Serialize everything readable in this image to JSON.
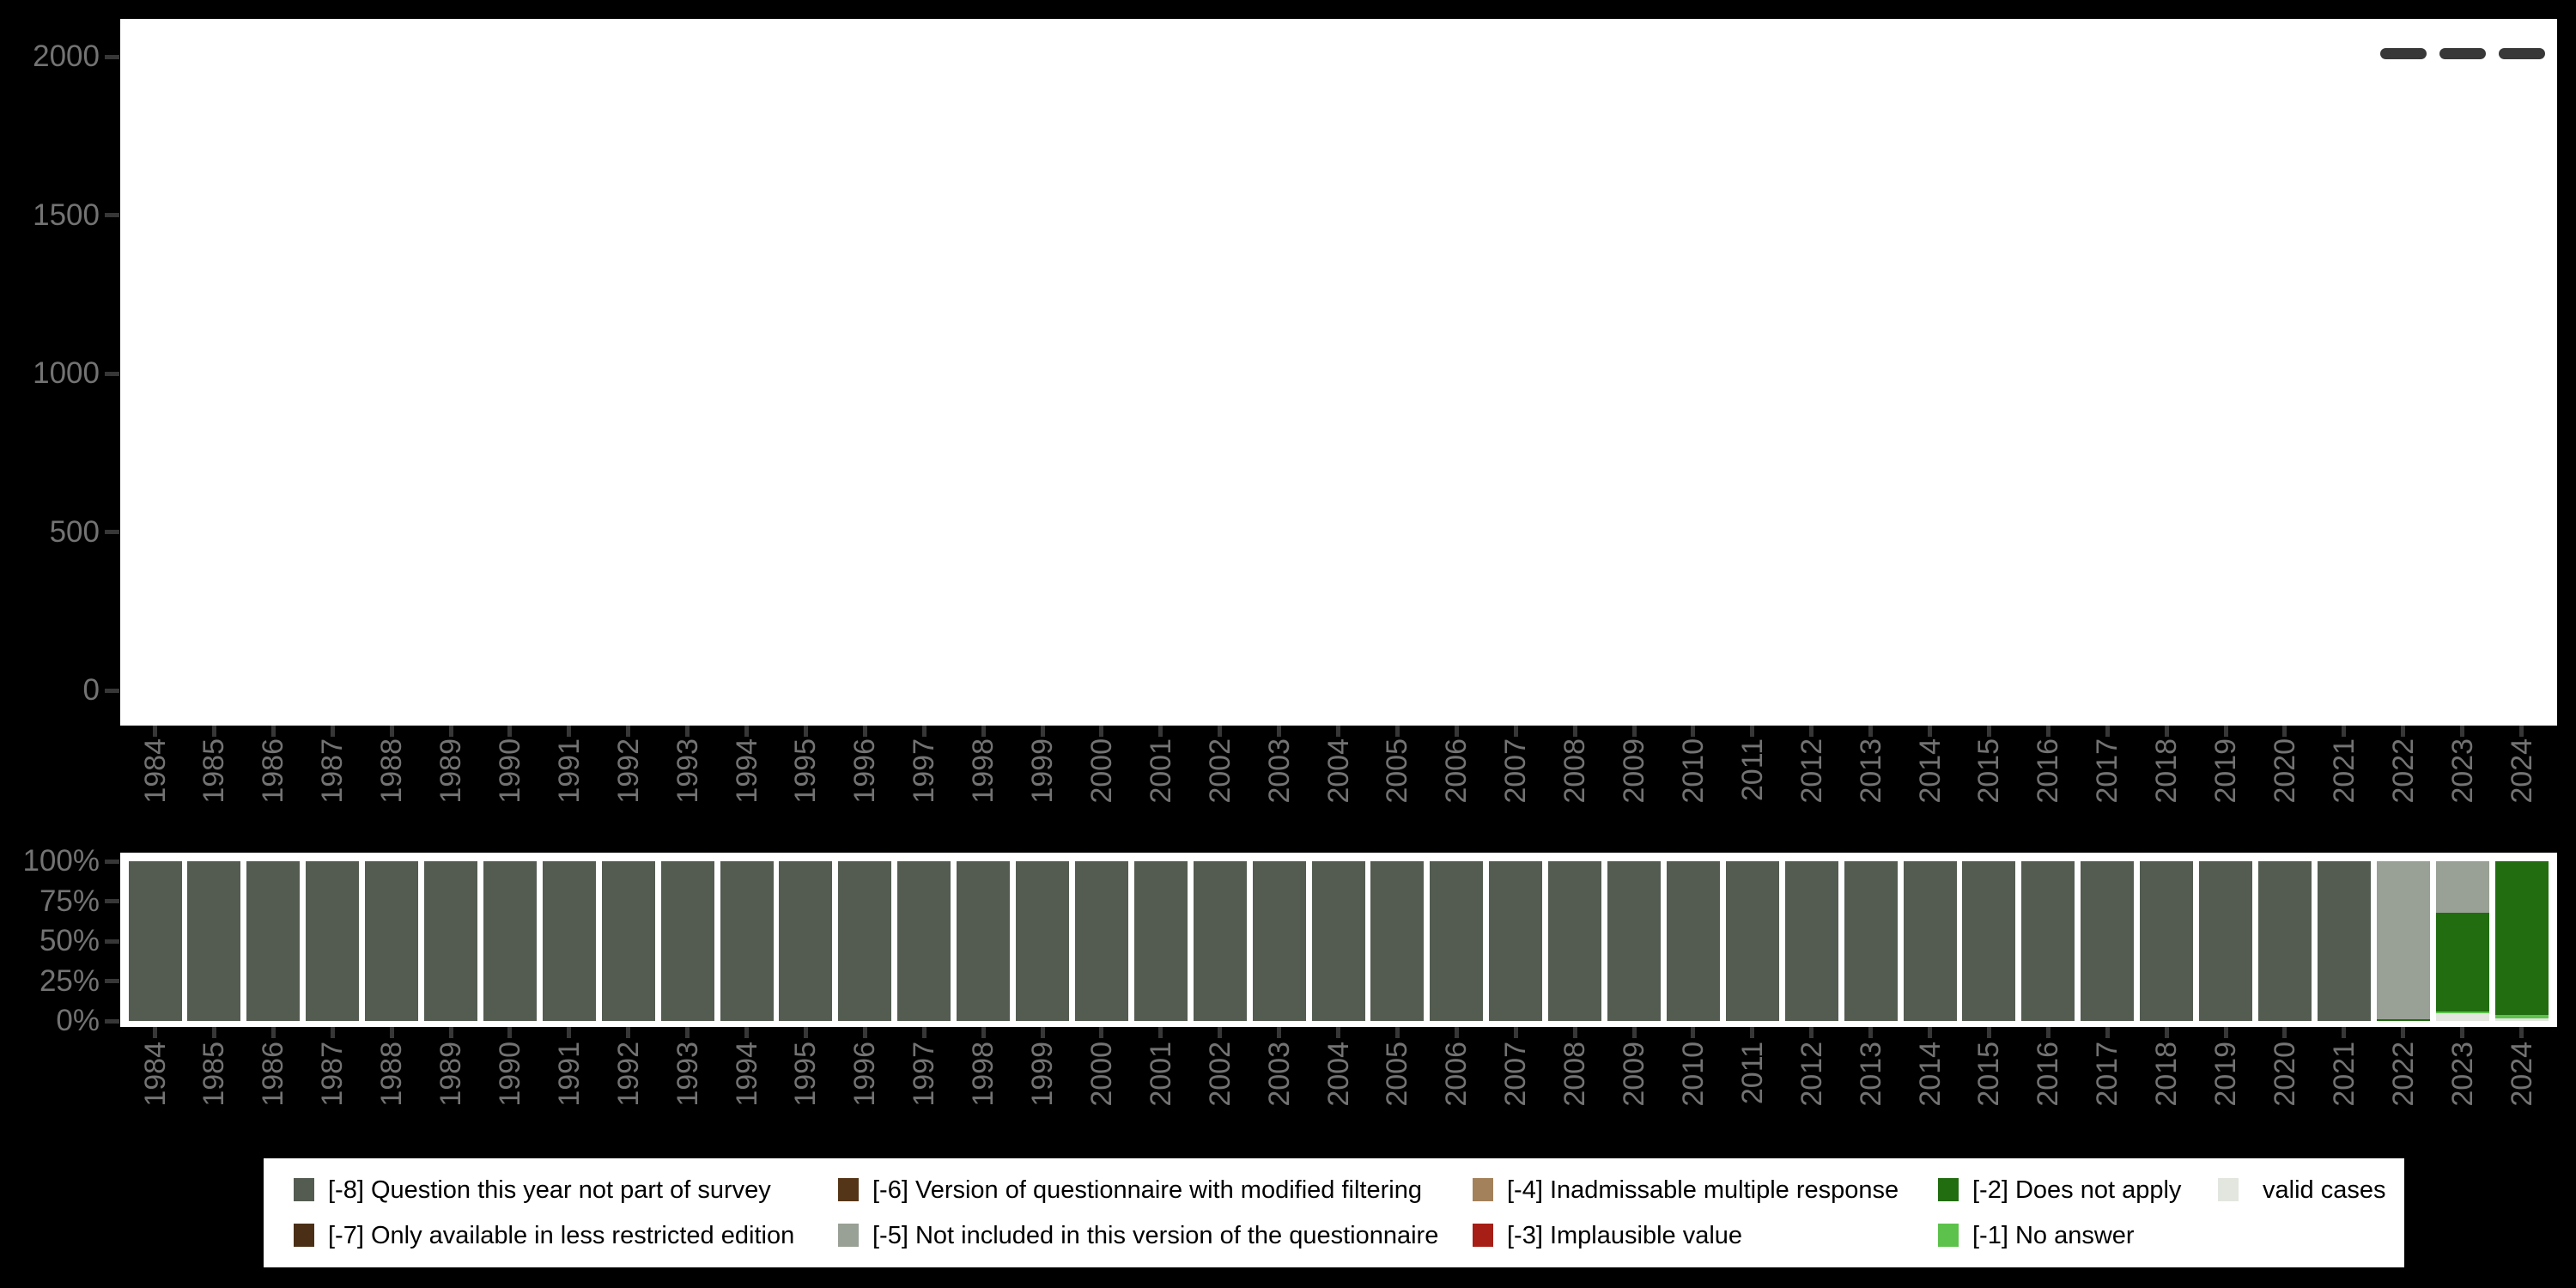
{
  "background_color": "#000000",
  "panel_color": "#ffffff",
  "axis": {
    "tick_color": "#373737",
    "label_color": "#737373",
    "marker_dash_color": "#383838"
  },
  "codes": {
    "-8": {
      "label": "[-8] Question this year not part of survey",
      "color": "#545C52"
    },
    "-7": {
      "label": "[-7] Only available in less restricted edition",
      "color": "#4A2F16"
    },
    "-6": {
      "label": "[-6] Version of questionnaire with modified filtering",
      "color": "#553517"
    },
    "-5": {
      "label": "[-5] Not included in this version of the questionnaire",
      "color": "#99A095"
    },
    "-4": {
      "label": "[-4] Inadmissable multiple response",
      "color": "#A3815A"
    },
    "-3": {
      "label": "[-3] Implausible value",
      "color": "#A61E15"
    },
    "-2": {
      "label": "[-2] Does not apply",
      "color": "#216D10"
    },
    "-1": {
      "label": "[-1] No answer",
      "color": "#5CC24B"
    },
    "valid": {
      "label": "valid cases",
      "color": "#E2E6DF"
    }
  },
  "legend": {
    "position": "bottom",
    "rows": [
      [
        {
          "key": "-8",
          "x": 35
        },
        {
          "key": "-6",
          "x": 669
        },
        {
          "key": "-4",
          "x": 1408
        },
        {
          "key": "-2",
          "x": 1950
        },
        {
          "key": "valid",
          "x": 2276,
          "label_dx": 52
        }
      ],
      [
        {
          "key": "-7",
          "x": 35
        },
        {
          "key": "-5",
          "x": 669
        },
        {
          "key": "-3",
          "x": 1408
        },
        {
          "key": "-1",
          "x": 1950
        }
      ]
    ]
  },
  "chart_data": [
    {
      "type": "scatter",
      "title": "",
      "xlabel": "",
      "ylabel": "",
      "marker": "dash",
      "categories": [
        1984,
        1985,
        1986,
        1987,
        1988,
        1989,
        1990,
        1991,
        1992,
        1993,
        1994,
        1995,
        1996,
        1997,
        1998,
        1999,
        2000,
        2001,
        2002,
        2003,
        2004,
        2005,
        2006,
        2007,
        2008,
        2009,
        2010,
        2011,
        2012,
        2013,
        2014,
        2015,
        2016,
        2017,
        2018,
        2019,
        2020,
        2021,
        2022,
        2023,
        2024
      ],
      "yticks": [
        0,
        500,
        1000,
        1500,
        2000
      ],
      "ylim": [
        0,
        2100
      ],
      "grid": false,
      "points": [
        {
          "x": 2022,
          "y": 2010
        },
        {
          "x": 2023,
          "y": 2010
        },
        {
          "x": 2024,
          "y": 2010
        }
      ],
      "note": "upper distribution panel is empty except dash markers near 2000 for 2022-2024"
    },
    {
      "type": "bar",
      "stacked": true,
      "title": "",
      "xlabel": "",
      "ylabel": "",
      "grid": false,
      "categories": [
        1984,
        1985,
        1986,
        1987,
        1988,
        1989,
        1990,
        1991,
        1992,
        1993,
        1994,
        1995,
        1996,
        1997,
        1998,
        1999,
        2000,
        2001,
        2002,
        2003,
        2004,
        2005,
        2006,
        2007,
        2008,
        2009,
        2010,
        2011,
        2012,
        2013,
        2014,
        2015,
        2016,
        2017,
        2018,
        2019,
        2020,
        2021,
        2022,
        2023,
        2024
      ],
      "yticks_percent": [
        0,
        25,
        50,
        75,
        100
      ],
      "series": [
        {
          "key": "-8",
          "name": "[-8] Question this year not part of survey",
          "values": [
            100,
            100,
            100,
            100,
            100,
            100,
            100,
            100,
            100,
            100,
            100,
            100,
            100,
            100,
            100,
            100,
            100,
            100,
            100,
            100,
            100,
            100,
            100,
            100,
            100,
            100,
            100,
            100,
            100,
            100,
            100,
            100,
            100,
            100,
            100,
            100,
            100,
            100,
            0,
            0,
            0
          ]
        },
        {
          "key": "-7",
          "name": "[-7] Only available in less restricted edition",
          "values": [
            0,
            0,
            0,
            0,
            0,
            0,
            0,
            0,
            0,
            0,
            0,
            0,
            0,
            0,
            0,
            0,
            0,
            0,
            0,
            0,
            0,
            0,
            0,
            0,
            0,
            0,
            0,
            0,
            0,
            0,
            0,
            0,
            0,
            0,
            0,
            0,
            0,
            0,
            0,
            0,
            0
          ]
        },
        {
          "key": "-6",
          "name": "[-6] Version of questionnaire with modified filtering",
          "values": [
            0,
            0,
            0,
            0,
            0,
            0,
            0,
            0,
            0,
            0,
            0,
            0,
            0,
            0,
            0,
            0,
            0,
            0,
            0,
            0,
            0,
            0,
            0,
            0,
            0,
            0,
            0,
            0,
            0,
            0,
            0,
            0,
            0,
            0,
            0,
            0,
            0,
            0,
            0,
            0,
            0
          ]
        },
        {
          "key": "-5",
          "name": "[-5] Not included in this version of the questionnaire",
          "values": [
            0,
            0,
            0,
            0,
            0,
            0,
            0,
            0,
            0,
            0,
            0,
            0,
            0,
            0,
            0,
            0,
            0,
            0,
            0,
            0,
            0,
            0,
            0,
            0,
            0,
            0,
            0,
            0,
            0,
            0,
            0,
            0,
            0,
            0,
            0,
            0,
            0,
            0,
            98.8,
            32,
            0
          ]
        },
        {
          "key": "-4",
          "name": "[-4] Inadmissable multiple response",
          "values": [
            0,
            0,
            0,
            0,
            0,
            0,
            0,
            0,
            0,
            0,
            0,
            0,
            0,
            0,
            0,
            0,
            0,
            0,
            0,
            0,
            0,
            0,
            0,
            0,
            0,
            0,
            0,
            0,
            0,
            0,
            0,
            0,
            0,
            0,
            0,
            0,
            0,
            0,
            0,
            0,
            0
          ]
        },
        {
          "key": "-3",
          "name": "[-3] Implausible value",
          "values": [
            0,
            0,
            0,
            0,
            0,
            0,
            0,
            0,
            0,
            0,
            0,
            0,
            0,
            0,
            0,
            0,
            0,
            0,
            0,
            0,
            0,
            0,
            0,
            0,
            0,
            0,
            0,
            0,
            0,
            0,
            0,
            0,
            0,
            0,
            0,
            0,
            0,
            0,
            0,
            0,
            0
          ]
        },
        {
          "key": "-2",
          "name": "[-2] Does not apply",
          "values": [
            0,
            0,
            0,
            0,
            0,
            0,
            0,
            0,
            0,
            0,
            0,
            0,
            0,
            0,
            0,
            0,
            0,
            0,
            0,
            0,
            0,
            0,
            0,
            0,
            0,
            0,
            0,
            0,
            0,
            0,
            0,
            0,
            0,
            0,
            0,
            0,
            0,
            0,
            1.2,
            62,
            96.4
          ]
        },
        {
          "key": "-1",
          "name": "[-1] No answer",
          "values": [
            0,
            0,
            0,
            0,
            0,
            0,
            0,
            0,
            0,
            0,
            0,
            0,
            0,
            0,
            0,
            0,
            0,
            0,
            0,
            0,
            0,
            0,
            0,
            0,
            0,
            0,
            0,
            0,
            0,
            0,
            0,
            0,
            0,
            0,
            0,
            0,
            0,
            0,
            0,
            1.3,
            1.8
          ]
        },
        {
          "key": "valid",
          "name": "valid cases",
          "values": [
            0,
            0,
            0,
            0,
            0,
            0,
            0,
            0,
            0,
            0,
            0,
            0,
            0,
            0,
            0,
            0,
            0,
            0,
            0,
            0,
            0,
            0,
            0,
            0,
            0,
            0,
            0,
            0,
            0,
            0,
            0,
            0,
            0,
            0,
            0,
            0,
            0,
            0,
            0,
            4.7,
            1.8
          ]
        }
      ]
    }
  ]
}
